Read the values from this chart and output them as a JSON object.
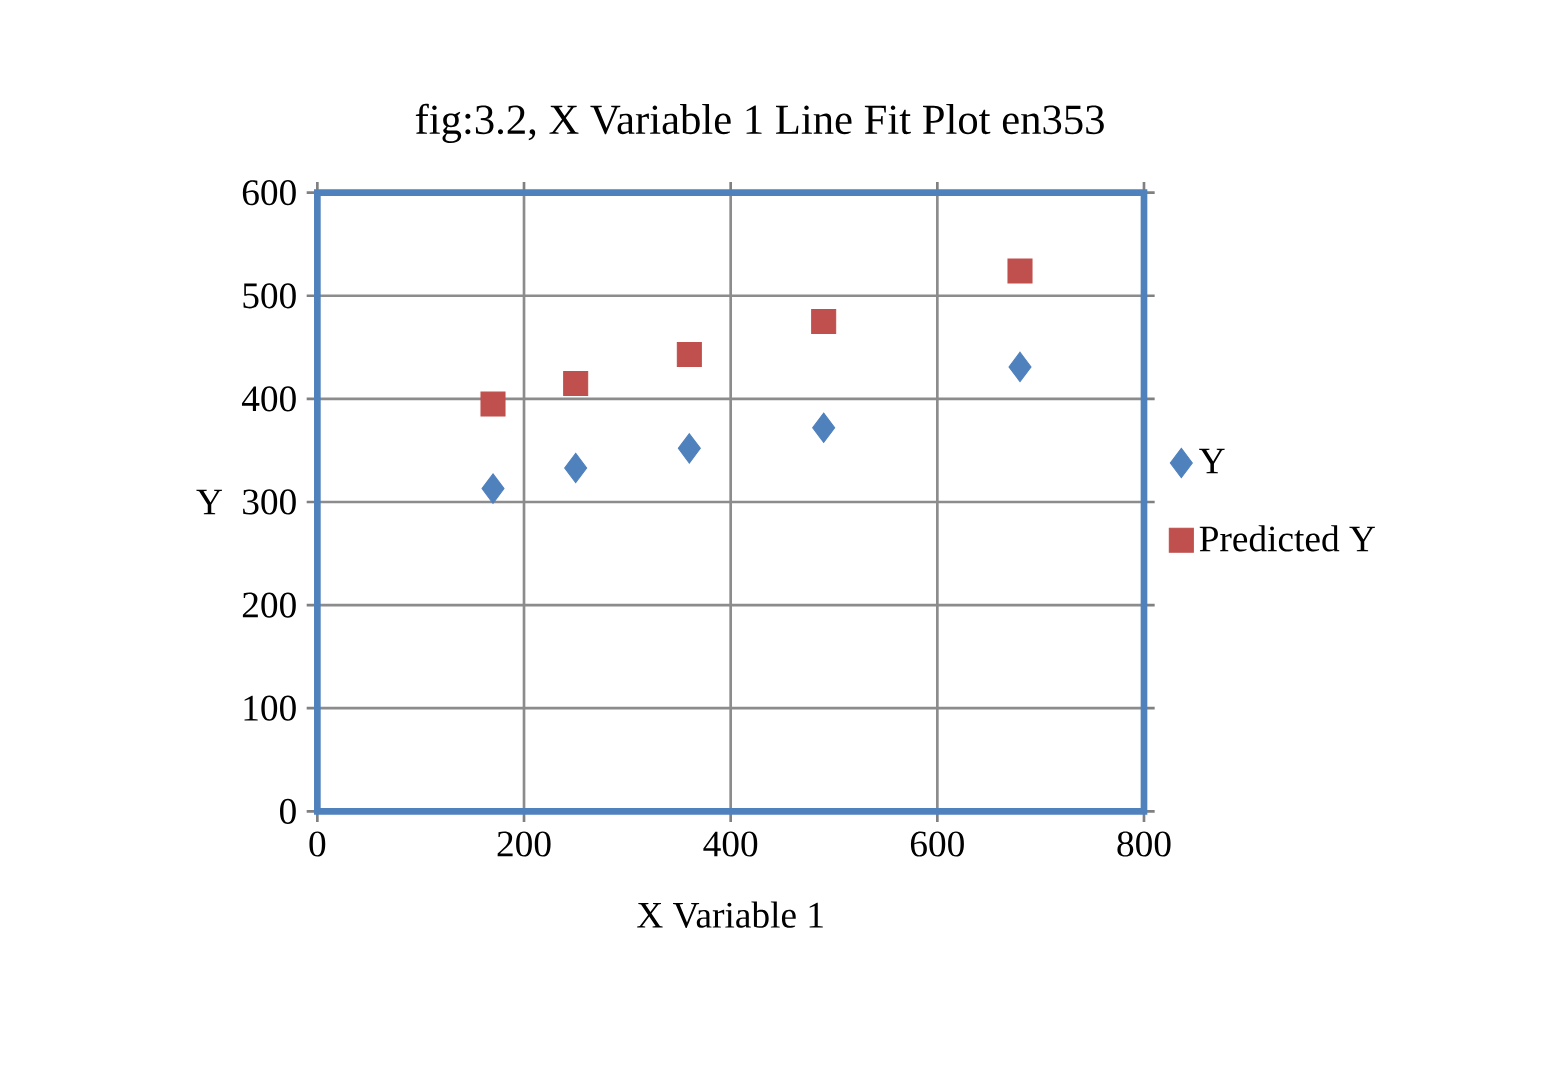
{
  "chart_data": {
    "type": "scatter",
    "title": "fig:3.2, X Variable 1 Line Fit  Plot en353",
    "xlabel": "X Variable 1",
    "ylabel": "Y",
    "series": [
      {
        "name": "Y",
        "color": "#4f81bd",
        "marker": "diamond",
        "x": [
          170,
          250,
          360,
          490,
          680
        ],
        "values": [
          313,
          333,
          352,
          372,
          431
        ]
      },
      {
        "name": "Predicted Y",
        "color": "#c0504d",
        "marker": "square",
        "x": [
          170,
          250,
          360,
          490,
          680
        ],
        "values": [
          395,
          415,
          443,
          475,
          524
        ]
      }
    ],
    "xlim": [
      0,
      800
    ],
    "xticks": [
      0,
      200,
      400,
      600,
      800
    ],
    "ylim": [
      0,
      600
    ],
    "yticks": [
      0,
      100,
      200,
      300,
      400,
      500,
      600
    ],
    "grid": true,
    "legend": "right"
  }
}
